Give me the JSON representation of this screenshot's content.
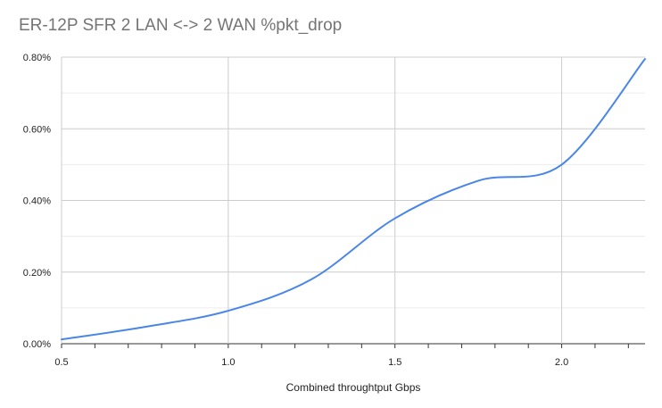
{
  "chart_data": {
    "type": "line",
    "title": "ER-12P SFR  2 LAN <-> 2 WAN %pkt_drop",
    "xlabel": "Combined throughtput Gbps",
    "ylabel": "",
    "xlim": [
      0.5,
      2.25
    ],
    "ylim": [
      0,
      0.008
    ],
    "x_ticks": [
      "0.5",
      "1.0",
      "1.5",
      "2.0"
    ],
    "x_tick_values": [
      0.5,
      1.0,
      1.5,
      2.0
    ],
    "y_ticks": [
      "0.00%",
      "0.20%",
      "0.40%",
      "0.60%",
      "0.80%"
    ],
    "y_tick_values": [
      0,
      0.002,
      0.004,
      0.006,
      0.008
    ],
    "grid": true,
    "legend": "none",
    "series": [
      {
        "color": "#4a86e8",
        "x": [
          0.5,
          0.75,
          1.0,
          1.25,
          1.5,
          1.75,
          2.0,
          2.25
        ],
        "y": [
          0.00012,
          0.00047,
          0.00092,
          0.0018,
          0.0035,
          0.00455,
          0.005,
          0.00795
        ]
      }
    ]
  }
}
